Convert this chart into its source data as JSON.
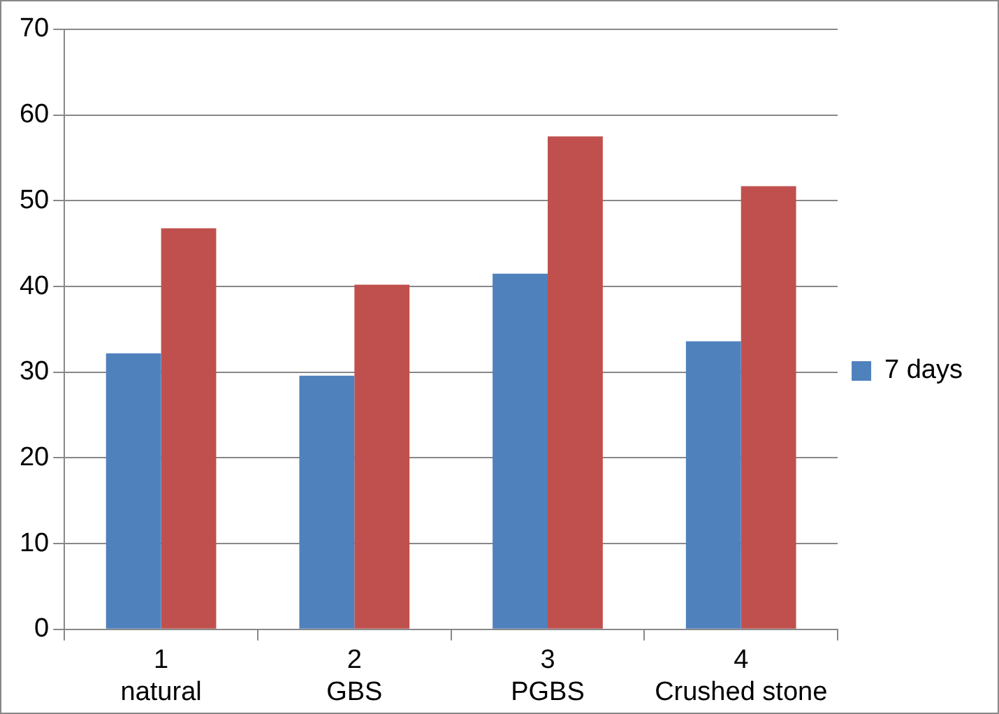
{
  "chart_data": {
    "type": "bar",
    "categories": [
      "1\nnatural",
      "2\nGBS",
      "3\nPGBS",
      "4\nCrushed stone"
    ],
    "series": [
      {
        "name": "7 days",
        "color": "#4f81bd",
        "values": [
          32.2,
          29.6,
          41.5,
          33.6
        ]
      },
      {
        "color": "#c0504d",
        "values": [
          46.8,
          40.2,
          57.5,
          51.7
        ]
      }
    ],
    "ylim": [
      0,
      70
    ],
    "yticks": [
      0,
      10,
      20,
      30,
      40,
      50,
      60,
      70
    ],
    "grid": "y",
    "legend": "right"
  }
}
